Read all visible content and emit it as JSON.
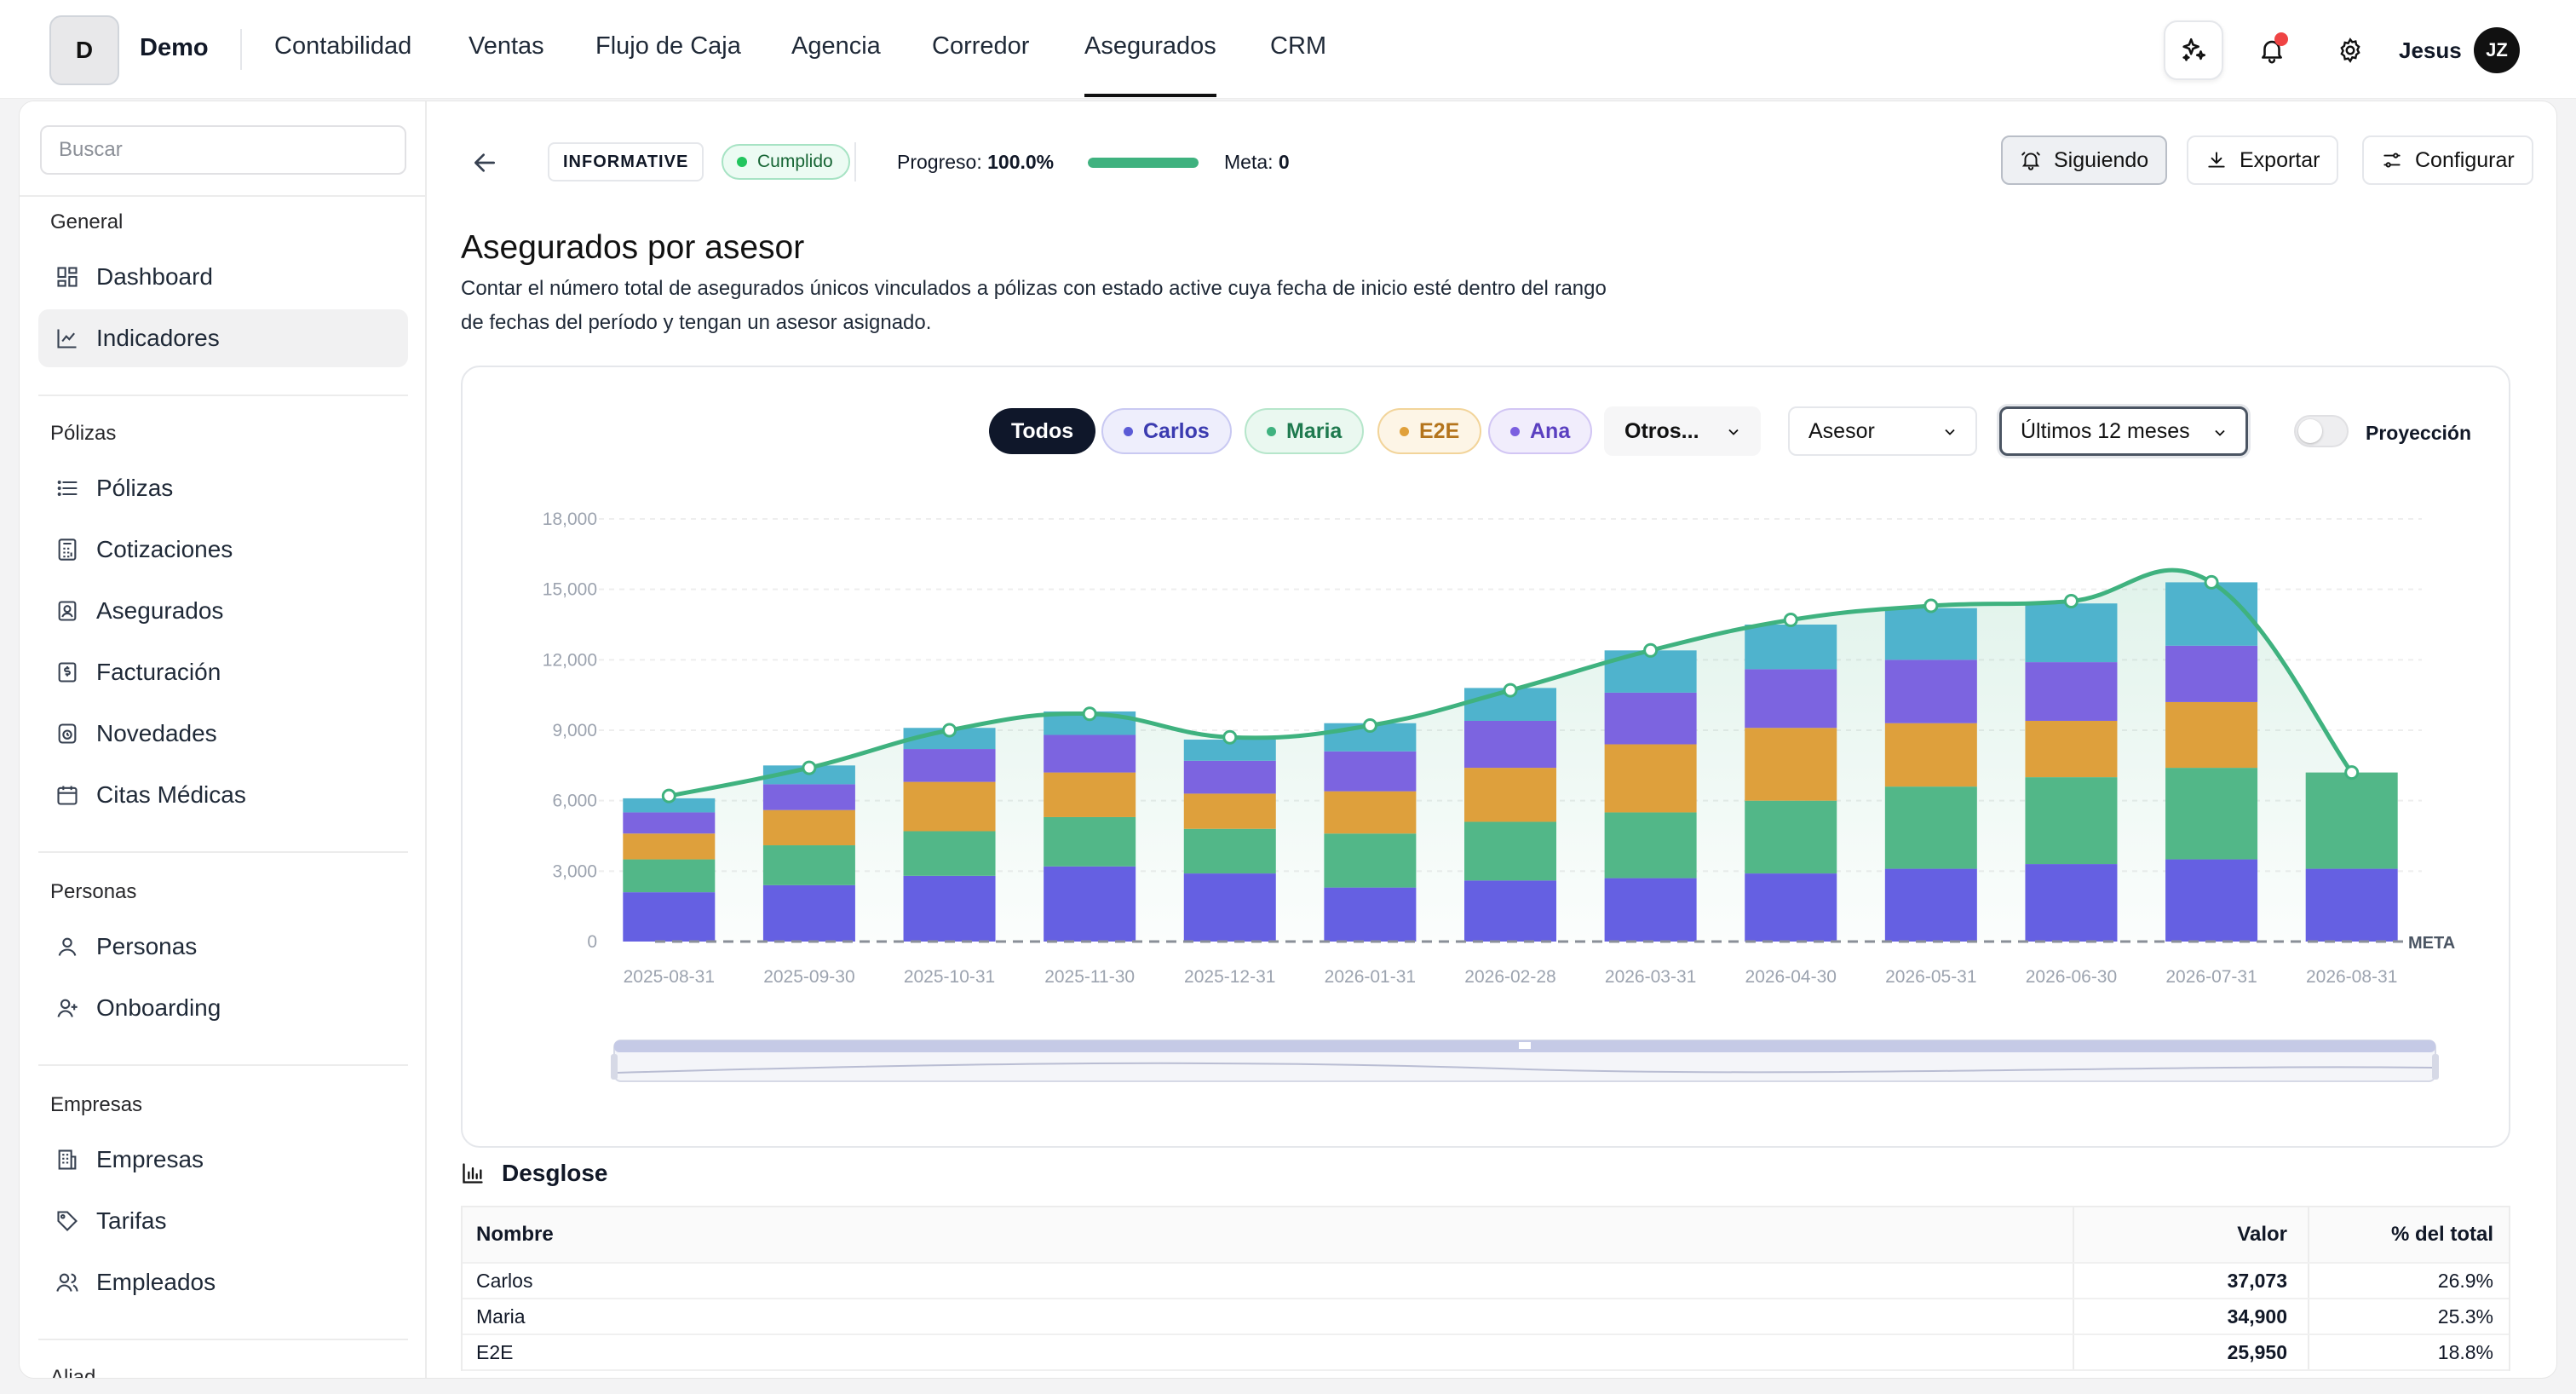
{
  "brand": {
    "initial": "D",
    "name": "Demo"
  },
  "nav": {
    "items": [
      "Contabilidad",
      "Ventas",
      "Flujo de Caja",
      "Agencia",
      "Corredor",
      "Asegurados",
      "CRM"
    ],
    "active": "Asegurados"
  },
  "user": {
    "name": "Jesus",
    "initials": "JZ"
  },
  "icons": {
    "ai": "sparkles-icon",
    "notifications": "bell-icon",
    "settings": "gear-icon"
  },
  "sidebar": {
    "search_placeholder": "Buscar",
    "sections": [
      {
        "title": "General",
        "items": [
          {
            "label": "Dashboard",
            "icon": "grid-icon"
          },
          {
            "label": "Indicadores",
            "icon": "chart-icon",
            "active": true
          }
        ]
      },
      {
        "title": "Pólizas",
        "items": [
          {
            "label": "Pólizas",
            "icon": "list-icon"
          },
          {
            "label": "Cotizaciones",
            "icon": "calculator-icon"
          },
          {
            "label": "Asegurados",
            "icon": "id-card-icon"
          },
          {
            "label": "Facturación",
            "icon": "invoice-icon"
          },
          {
            "label": "Novedades",
            "icon": "clock-icon"
          },
          {
            "label": "Citas Médicas",
            "icon": "calendar-icon"
          }
        ]
      },
      {
        "title": "Personas",
        "items": [
          {
            "label": "Personas",
            "icon": "user-icon"
          },
          {
            "label": "Onboarding",
            "icon": "user-plus-icon"
          }
        ]
      },
      {
        "title": "Empresas",
        "items": [
          {
            "label": "Empresas",
            "icon": "building-icon"
          },
          {
            "label": "Tarifas",
            "icon": "tag-icon"
          },
          {
            "label": "Empleados",
            "icon": "users-icon"
          }
        ]
      },
      {
        "title": "Aliad",
        "items": []
      }
    ]
  },
  "header": {
    "type_tag": "INFORMATIVE",
    "status": "Cumplido",
    "progress_label": "Progreso:",
    "progress_value": "100.0%",
    "progress_fraction": 1.0,
    "meta_label": "Meta:",
    "meta_value": "0",
    "buttons": {
      "follow": "Siguiendo",
      "export": "Exportar",
      "configure": "Configurar"
    }
  },
  "kpi": {
    "title": "Asegurados por asesor",
    "description": "Contar el número total de asegurados únicos vinculados a pólizas con estado active cuya fecha de inicio esté dentro del rango de fechas del período y tengan un asesor asignado."
  },
  "filters": {
    "pills": [
      {
        "label": "Todos",
        "active": true
      },
      {
        "label": "Carlos",
        "color": "#5b5bd6"
      },
      {
        "label": "Maria",
        "color": "#3fb27f"
      },
      {
        "label": "E2E",
        "color": "#e0a03a"
      },
      {
        "label": "Ana",
        "color": "#7b5fe0"
      }
    ],
    "others": "Otros...",
    "group_by": "Asesor",
    "period": "Últimos 12 meses",
    "projection_label": "Proyección",
    "projection_on": false
  },
  "chart_data": {
    "type": "bar",
    "stacked": true,
    "categories": [
      "2025-08-31",
      "2025-09-30",
      "2025-10-31",
      "2025-11-30",
      "2025-12-31",
      "2026-01-31",
      "2026-02-28",
      "2026-03-31",
      "2026-04-30",
      "2026-05-31",
      "2026-06-30",
      "2026-07-31",
      "2026-08-31"
    ],
    "series": [
      {
        "color": "#6560e2",
        "values": [
          2100,
          2400,
          2800,
          3200,
          2900,
          2300,
          2600,
          2700,
          2900,
          3100,
          3300,
          3500,
          3100
        ]
      },
      {
        "color": "#52b788",
        "values": [
          1400,
          1700,
          1900,
          2100,
          1900,
          2300,
          2500,
          2800,
          3100,
          3500,
          3700,
          3900,
          4100
        ]
      },
      {
        "color": "#dea03c",
        "values": [
          1100,
          1500,
          2100,
          1900,
          1500,
          1800,
          2300,
          2900,
          3100,
          2700,
          2400,
          2800,
          0
        ]
      },
      {
        "color": "#7c64e0",
        "values": [
          900,
          1100,
          1400,
          1600,
          1400,
          1700,
          2000,
          2200,
          2500,
          2700,
          2500,
          2400,
          0
        ]
      },
      {
        "color": "#4fb3cd",
        "values": [
          600,
          800,
          900,
          1000,
          900,
          1200,
          1400,
          1800,
          1900,
          2200,
          2500,
          2700,
          0
        ]
      }
    ],
    "total_line": {
      "color": "#3fb27f",
      "values": [
        6200,
        7400,
        9000,
        9700,
        8700,
        9200,
        10700,
        12400,
        13700,
        14300,
        14500,
        15300,
        7200
      ]
    },
    "meta_value": 0,
    "meta_label": "META",
    "ylim": [
      0,
      18000
    ],
    "yticks": [
      "0",
      "3,000",
      "6,000",
      "9,000",
      "12,000",
      "15,000",
      "18,000"
    ],
    "grid": true,
    "xlabel": "",
    "ylabel": ""
  },
  "breakdown": {
    "title": "Desglose",
    "columns": [
      "Nombre",
      "Valor",
      "% del total"
    ],
    "rows": [
      {
        "name": "Carlos",
        "value": "37,073",
        "pct": "26.9%"
      },
      {
        "name": "Maria",
        "value": "34,900",
        "pct": "25.3%"
      },
      {
        "name": "E2E",
        "value": "25,950",
        "pct": "18.8%"
      }
    ]
  }
}
